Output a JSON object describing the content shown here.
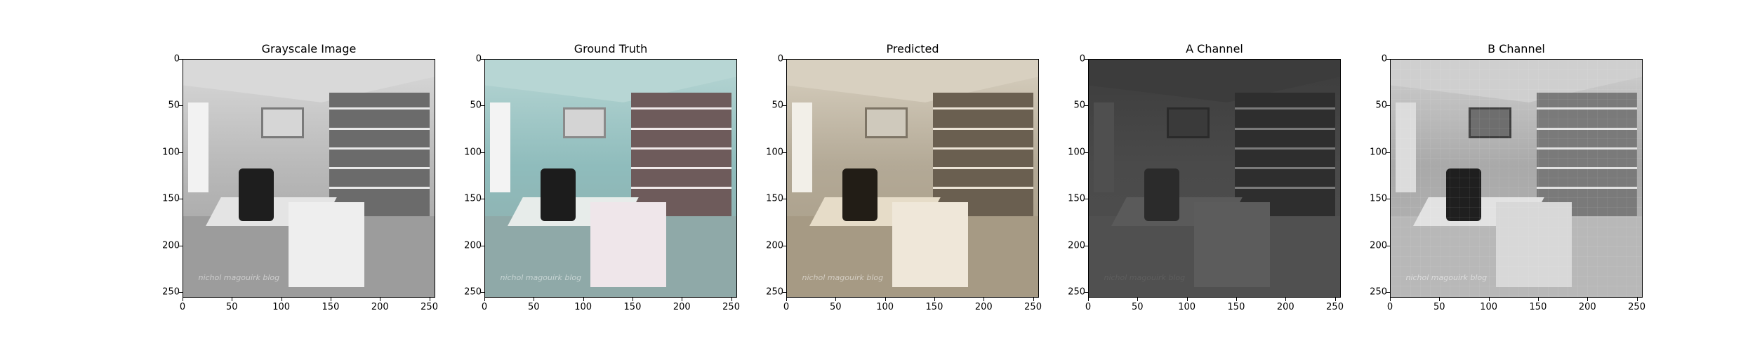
{
  "figure": {
    "panels": [
      {
        "id": "grayscale",
        "title": "Grayscale Image",
        "palette": {
          "wall": "#b9b9b9",
          "ceiling": "#d9d9d9",
          "window": "#f2f2f2",
          "monitor": "#d6d6d6",
          "monitor_frame": "#7a7a7a",
          "shelf": "#6b6b6b",
          "shelf_line": "#e8e8e8",
          "desk": "#9c9c9c",
          "desk_top": "#e4e4e4",
          "chair": "#1e1e1e",
          "drawers": "#eeeeee",
          "watermark": "#ffffff"
        }
      },
      {
        "id": "ground-truth",
        "title": "Ground Truth",
        "palette": {
          "wall": "#8fbcbc",
          "ceiling": "#b7d6d4",
          "window": "#f3f3f3",
          "monitor": "#d4d4d4",
          "monitor_frame": "#8a8a8a",
          "shelf": "#6e5b5b",
          "shelf_line": "#f0e9e9",
          "desk": "#8fa9a8",
          "desk_top": "#e7ecea",
          "chair": "#1c1c1c",
          "drawers": "#efe6ea",
          "watermark": "#ffffff"
        }
      },
      {
        "id": "predicted",
        "title": "Predicted",
        "palette": {
          "wall": "#b3a996",
          "ceiling": "#d8d0c0",
          "window": "#f2efe8",
          "monitor": "#cfc9bc",
          "monitor_frame": "#7d7465",
          "shelf": "#6a5f50",
          "shelf_line": "#ece4d6",
          "desk": "#a69a84",
          "desk_top": "#e6dcc8",
          "chair": "#221d16",
          "drawers": "#efe7d9",
          "watermark": "#ffffff"
        }
      },
      {
        "id": "a-channel",
        "title": "A Channel",
        "palette": {
          "wall": "#4a4a4a",
          "ceiling": "#3c3c3c",
          "window": "#4f4f4f",
          "monitor": "#3a3a3a",
          "monitor_frame": "#2a2a2a",
          "shelf": "#2e2e2e",
          "shelf_line": "#7a7a7a",
          "desk": "#505050",
          "desk_top": "#5a5a5a",
          "chair": "#2b2b2b",
          "drawers": "#5c5c5c",
          "watermark": "#6a6a6a"
        }
      },
      {
        "id": "b-channel",
        "title": "B Channel",
        "palette": {
          "wall": "#a9a9a9",
          "ceiling": "#cfcfcf",
          "window": "#dcdcdc",
          "monitor": "#6e6e6e",
          "monitor_frame": "#3f3f3f",
          "shelf": "#7a7a7a",
          "shelf_line": "#e0e0e0",
          "desk": "#b8b8b8",
          "desk_top": "#e2e2e2",
          "chair": "#1f1f1f",
          "drawers": "#d8d8d8",
          "watermark": "#ffffff"
        }
      }
    ],
    "axes": {
      "x_ticks": [
        "0",
        "50",
        "100",
        "150",
        "200",
        "250"
      ],
      "y_ticks": [
        "0",
        "50",
        "100",
        "150",
        "200",
        "250"
      ],
      "xlim": [
        0,
        256
      ],
      "ylim": [
        256,
        0
      ]
    },
    "watermark_text": "nichol magouirk blog"
  }
}
